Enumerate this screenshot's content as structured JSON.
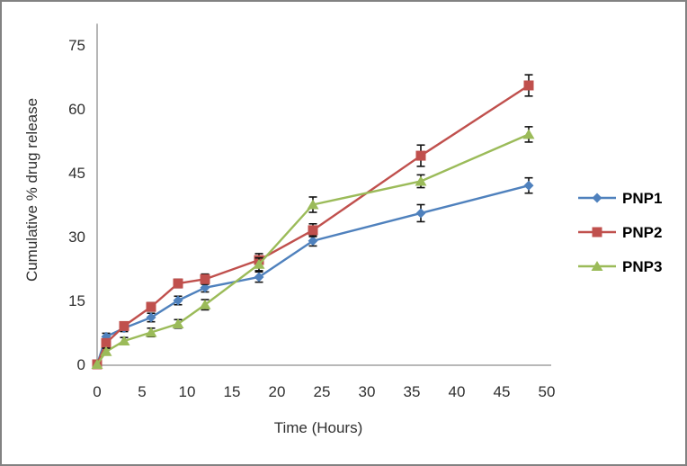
{
  "frame": {
    "border_color": "#828282",
    "background_color": "#ffffff"
  },
  "chart_data": {
    "type": "line",
    "title": "",
    "xlabel": "Time (Hours)",
    "ylabel": "Cumulative % drug release",
    "x": [
      0,
      1,
      3,
      6,
      9,
      12,
      18,
      24,
      36,
      48
    ],
    "x_ticks": [
      0,
      5,
      10,
      15,
      20,
      25,
      30,
      35,
      40,
      45,
      50
    ],
    "y_ticks": [
      0,
      15,
      30,
      45,
      60,
      75
    ],
    "xlim": [
      0,
      50
    ],
    "ylim": [
      0,
      80
    ],
    "grid": false,
    "tick_marks": false,
    "error_bars": true,
    "axis_color": "#8e8e8e",
    "text_color": "#2f2f2f",
    "error_bar_color": "#111111",
    "legend": {
      "position": "right",
      "bold": true,
      "entries": [
        "PNP1",
        "PNP2",
        "PNP3"
      ]
    },
    "series": [
      {
        "name": "PNP1",
        "color": "#4F81BD",
        "marker": "diamond",
        "values": [
          0,
          6.5,
          8.5,
          11,
          15,
          18,
          20.5,
          29,
          35.5,
          42
        ],
        "errors": [
          0,
          0.8,
          0.8,
          1,
          1,
          1,
          1.2,
          1.2,
          2,
          1.8
        ]
      },
      {
        "name": "PNP2",
        "color": "#C0504D",
        "marker": "square",
        "values": [
          0,
          5,
          9,
          13.5,
          19,
          20,
          24.5,
          31.5,
          49,
          65.5
        ],
        "errors": [
          0,
          0.8,
          0.8,
          1,
          1,
          1.2,
          1.5,
          1.5,
          2.5,
          2.5
        ]
      },
      {
        "name": "PNP3",
        "color": "#9BBB59",
        "marker": "triangle",
        "values": [
          0,
          3,
          5.5,
          7.5,
          9.5,
          14,
          23.5,
          37.5,
          43,
          54
        ],
        "errors": [
          0,
          0.8,
          0.8,
          1,
          1,
          1.2,
          1.5,
          1.8,
          1.5,
          1.8
        ]
      }
    ]
  }
}
